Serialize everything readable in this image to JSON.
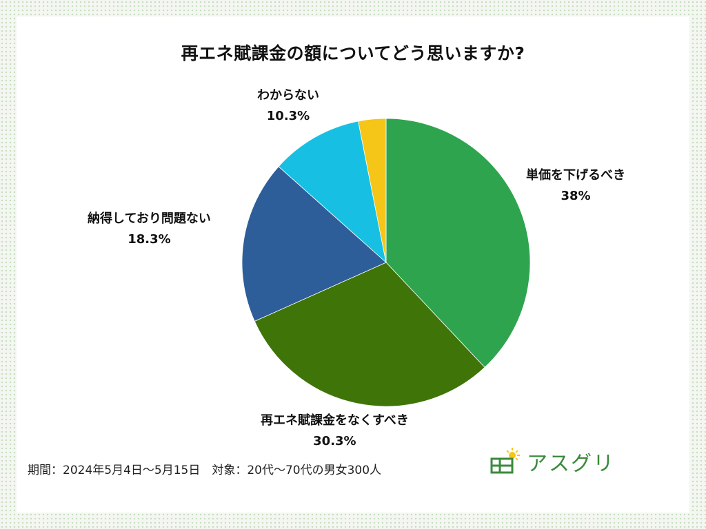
{
  "title": "再エネ賦課金の額についてどう思いますか?",
  "chart_data": {
    "type": "pie",
    "title": "再エネ賦課金の額についてどう思いますか?",
    "slices": [
      {
        "label": "単価を下げるべき",
        "value": 38,
        "value_label": "38%",
        "color": "#2ea44f"
      },
      {
        "label": "再エネ賦課金をなくすべき",
        "value": 30.3,
        "value_label": "30.3%",
        "color": "#3f7408"
      },
      {
        "label": "納得しており問題ない",
        "value": 18.3,
        "value_label": "18.3%",
        "color": "#2d5e99"
      },
      {
        "label": "わからない",
        "value": 10.3,
        "value_label": "10.3%",
        "color": "#17c0e3"
      },
      {
        "label": "",
        "value": 3.1,
        "value_label": "",
        "color": "#f5c518"
      }
    ],
    "start": "12 o'clock",
    "direction": "clockwise"
  },
  "footer": {
    "note": "期間：2024年5月4日〜5月15日　対象：20代〜70代の男女300人"
  },
  "brand": {
    "name": "アスグリ",
    "icon": "solar-panel-sun-icon",
    "color": "#3a8a3c",
    "sun_color": "#f5c518"
  }
}
